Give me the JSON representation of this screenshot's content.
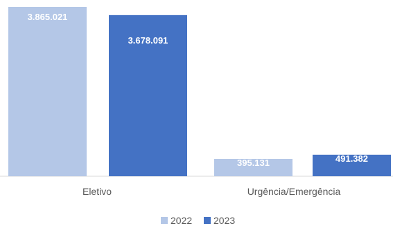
{
  "chart_data": {
    "type": "bar",
    "categories": [
      "Eletivo",
      "Urgência/Emergência"
    ],
    "series": [
      {
        "name": "2022",
        "values": [
          3865021,
          395131
        ],
        "value_labels": [
          "3.865.021",
          "395.131"
        ],
        "color": "#b4c7e7"
      },
      {
        "name": "2023",
        "values": [
          3678091,
          491382
        ],
        "value_labels": [
          "3.678.091",
          "491.382"
        ],
        "color": "#4472c4"
      }
    ],
    "ylim": [
      0,
      3865021
    ],
    "grid": false,
    "legend_position": "bottom"
  }
}
